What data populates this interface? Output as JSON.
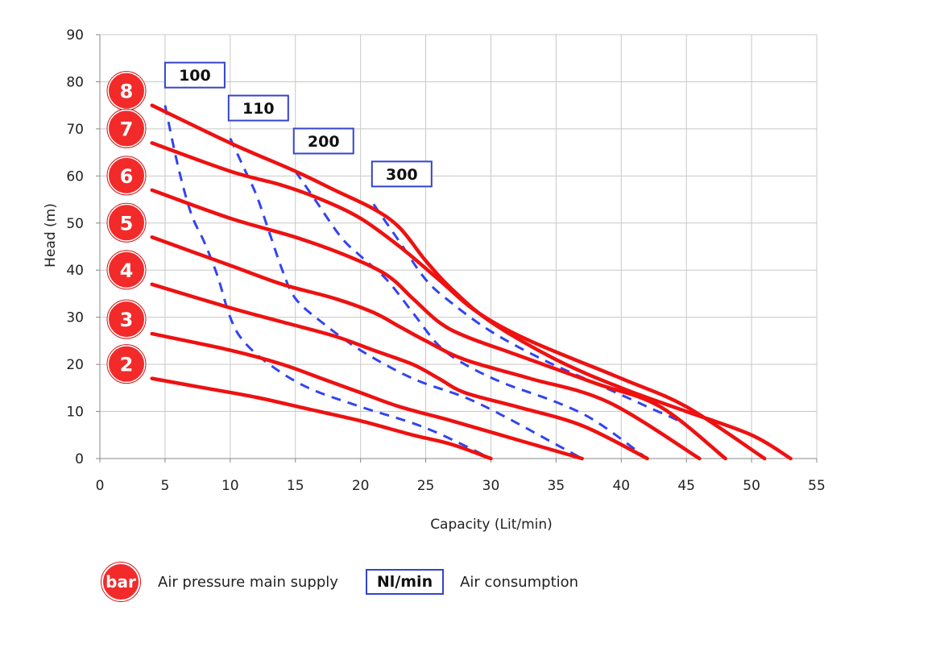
{
  "chart_data": {
    "type": "line",
    "title": "",
    "xlabel": "Capacity (Lit/min)",
    "ylabel": "Head (m)",
    "xlim": [
      0,
      55
    ],
    "ylim": [
      0,
      90
    ],
    "x_ticks": [
      "0",
      "5",
      "10",
      "15",
      "20",
      "25",
      "30",
      "35",
      "40",
      "45",
      "50",
      "55"
    ],
    "y_ticks": [
      "0",
      "10",
      "20",
      "30",
      "40",
      "50",
      "60",
      "70",
      "80",
      "90"
    ],
    "grid": true,
    "pressure_series": [
      {
        "name": "8",
        "label": "8",
        "points": [
          [
            4,
            75
          ],
          [
            10,
            67
          ],
          [
            15,
            61
          ],
          [
            18,
            57
          ],
          [
            21,
            53
          ],
          [
            23,
            49
          ],
          [
            25,
            42
          ],
          [
            27,
            36
          ],
          [
            30,
            29
          ],
          [
            35,
            21
          ],
          [
            40,
            15
          ],
          [
            45,
            10
          ],
          [
            50,
            5
          ],
          [
            53,
            0
          ]
        ]
      },
      {
        "name": "7",
        "label": "7",
        "points": [
          [
            4,
            67
          ],
          [
            10,
            61
          ],
          [
            14,
            58
          ],
          [
            17,
            55
          ],
          [
            20,
            51
          ],
          [
            23,
            45
          ],
          [
            26,
            38
          ],
          [
            29,
            31
          ],
          [
            33,
            25
          ],
          [
            40,
            17
          ],
          [
            45,
            11
          ],
          [
            51,
            0
          ]
        ]
      },
      {
        "name": "6",
        "label": "6",
        "points": [
          [
            4,
            57
          ],
          [
            10,
            51
          ],
          [
            15,
            47
          ],
          [
            19,
            43
          ],
          [
            22,
            39
          ],
          [
            24,
            34
          ],
          [
            26,
            29
          ],
          [
            28,
            26
          ],
          [
            32,
            22
          ],
          [
            38,
            16
          ],
          [
            43,
            11
          ],
          [
            48,
            0
          ]
        ]
      },
      {
        "name": "5",
        "label": "5",
        "points": [
          [
            4,
            47
          ],
          [
            10,
            41
          ],
          [
            14,
            37
          ],
          [
            18,
            34
          ],
          [
            21,
            31
          ],
          [
            23,
            28
          ],
          [
            25,
            25
          ],
          [
            28,
            21
          ],
          [
            33,
            17
          ],
          [
            39,
            12
          ],
          [
            46,
            0
          ]
        ]
      },
      {
        "name": "4",
        "label": "4",
        "points": [
          [
            4,
            37
          ],
          [
            10,
            32
          ],
          [
            14,
            29
          ],
          [
            18,
            26
          ],
          [
            21,
            23
          ],
          [
            24,
            20
          ],
          [
            26,
            17
          ],
          [
            28,
            14
          ],
          [
            32,
            11
          ],
          [
            37,
            7
          ],
          [
            42,
            0
          ]
        ]
      },
      {
        "name": "3",
        "label": "3",
        "points": [
          [
            4,
            26.5
          ],
          [
            10,
            23
          ],
          [
            14,
            20
          ],
          [
            17,
            17
          ],
          [
            20,
            14
          ],
          [
            23,
            11
          ],
          [
            27,
            8
          ],
          [
            32,
            4
          ],
          [
            37,
            0
          ]
        ]
      },
      {
        "name": "2",
        "label": "2",
        "points": [
          [
            4,
            17
          ],
          [
            8,
            15
          ],
          [
            12,
            13
          ],
          [
            16,
            10.5
          ],
          [
            20,
            8
          ],
          [
            24,
            5
          ],
          [
            27,
            3
          ],
          [
            30,
            0
          ]
        ]
      }
    ],
    "air_consumption_series": [
      {
        "name": "100",
        "label": "100",
        "points": [
          [
            5,
            75
          ],
          [
            6,
            62
          ],
          [
            7,
            52
          ],
          [
            8,
            46
          ],
          [
            9,
            39
          ],
          [
            10,
            30
          ],
          [
            11,
            25
          ],
          [
            13,
            20
          ],
          [
            16,
            15
          ],
          [
            20,
            11
          ],
          [
            25,
            6.5
          ],
          [
            30,
            0
          ]
        ]
      },
      {
        "name": "110",
        "label": "110",
        "points": [
          [
            10,
            68
          ],
          [
            11,
            62
          ],
          [
            12,
            56
          ],
          [
            13,
            48
          ],
          [
            14,
            40
          ],
          [
            15,
            34
          ],
          [
            17,
            29
          ],
          [
            20,
            23
          ],
          [
            24,
            17
          ],
          [
            28,
            13
          ],
          [
            31,
            9
          ],
          [
            35,
            3
          ],
          [
            37,
            0
          ]
        ]
      },
      {
        "name": "200",
        "label": "200",
        "points": [
          [
            15,
            61
          ],
          [
            16.5,
            55
          ],
          [
            18.5,
            47
          ],
          [
            20,
            43
          ],
          [
            22,
            38
          ],
          [
            24,
            31
          ],
          [
            26,
            24
          ],
          [
            28,
            20
          ],
          [
            31,
            16
          ],
          [
            35,
            12
          ],
          [
            38,
            8
          ],
          [
            42,
            0
          ]
        ]
      },
      {
        "name": "300",
        "label": "300",
        "points": [
          [
            21,
            54
          ],
          [
            23,
            46
          ],
          [
            25,
            38
          ],
          [
            27,
            33
          ],
          [
            30,
            27
          ],
          [
            34,
            21
          ],
          [
            38,
            16
          ],
          [
            42,
            11
          ],
          [
            45,
            7
          ],
          [
            48,
            0
          ]
        ]
      }
    ]
  },
  "legend": {
    "pressure_badge": "bar",
    "pressure_label": "Air pressure main supply",
    "consumption_box": "Nl/min",
    "consumption_label": "Air consumption"
  },
  "colors": {
    "pressure_line": "#ee1111",
    "badge_fill": "#f22a2a",
    "consumption_line": "#3344ee",
    "box_border": "#3344cc",
    "grid": "#c8c8c8"
  }
}
